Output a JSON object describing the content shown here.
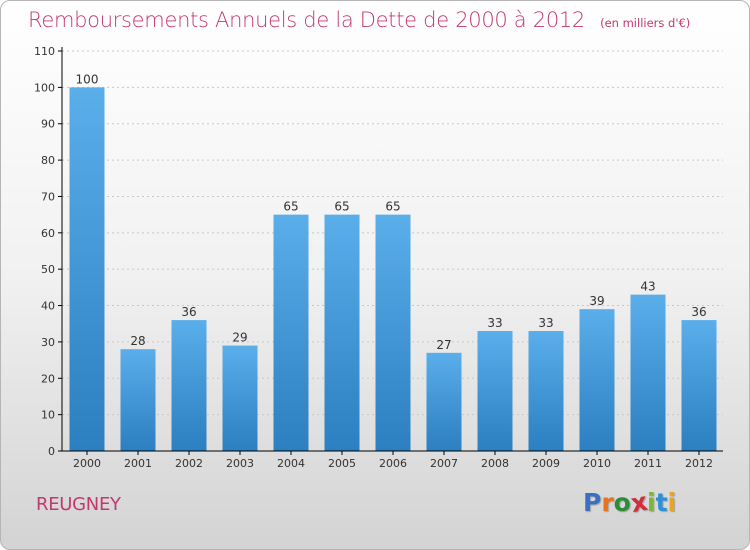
{
  "title": "Remboursements Annuels de la Dette de 2000 à 2012",
  "unit_note": "(en milliers d'€)",
  "commune": "REUGNEY",
  "brand": {
    "text": "Proxiti",
    "letters": [
      "P",
      "r",
      "o",
      "x",
      "i",
      "t",
      "i"
    ],
    "letter_colors": [
      "#3a6fc4",
      "#e8721e",
      "#2e8b3a",
      "#d22d3c",
      "#7bb83a",
      "#2d8fd5",
      "#e8a51e"
    ]
  },
  "colors": {
    "title": "#c4386f",
    "bar_top": "#5aaeea",
    "bar_bottom": "#2c7fc0",
    "axis": "#000000",
    "grid": "#c8c8c8"
  },
  "chart_data": {
    "type": "bar",
    "categories": [
      "2000",
      "2001",
      "2002",
      "2003",
      "2004",
      "2005",
      "2006",
      "2007",
      "2008",
      "2009",
      "2010",
      "2011",
      "2012"
    ],
    "values": [
      100,
      28,
      36,
      29,
      65,
      65,
      65,
      27,
      33,
      33,
      39,
      43,
      36
    ],
    "yticks": [
      0,
      10,
      20,
      30,
      40,
      50,
      60,
      70,
      80,
      90,
      100,
      110
    ],
    "ylim": [
      0,
      110
    ],
    "grid": true,
    "data_labels": true,
    "title": "Remboursements Annuels de la Dette de 2000 à 2012",
    "xlabel": "",
    "ylabel": ""
  }
}
